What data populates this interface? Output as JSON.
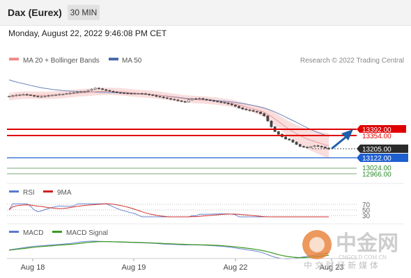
{
  "header": {
    "instrument": "Dax (Eurex)",
    "timeframe": "30 MIN",
    "datetime": "Monday, August 22, 2022 9:46:08 PM CET"
  },
  "legend": {
    "ma20_label": "MA 20 + Bollinger Bands",
    "ma50_label": "MA 50",
    "copyright": "Research © 2022 Trading Central",
    "rsi_label": "RSI",
    "rsi_ma_label": "9MA",
    "macd_label": "MACD",
    "macd_signal_label": "MACD Signal"
  },
  "watermark": {
    "brand_cn": "中金网",
    "domain": "CNGOLD.COM.CN",
    "tagline_cn": "中 文 财 经 新 媒 体"
  },
  "colors": {
    "candle_up": "#444444",
    "candle_down": "#444444",
    "ma20": "#e88a8a",
    "bollinger_fill": "#f8d0d0",
    "ma50": "#5b78b0",
    "resistance": "#e00000",
    "pivot": "#333333",
    "support1": "#1e5fd0",
    "support2": "#2e8a2e",
    "arrow": "#1e5fa8",
    "rsi": "#5b78d0",
    "rsi_ma": "#d02020",
    "macd": "#5b78d0",
    "macd_signal": "#3a9a20"
  },
  "chart_data": {
    "type": "line",
    "title": "",
    "x_ticks": [
      "Aug 18",
      "Aug 19",
      "Aug 22",
      "Aug 23"
    ],
    "price_levels": [
      {
        "value": 13392.0,
        "label": "13392.00",
        "kind": "resistance"
      },
      {
        "value": 13354.0,
        "label": "13354.00",
        "kind": "resistance"
      },
      {
        "value": 13205.0,
        "label": "13205.00",
        "kind": "pivot"
      },
      {
        "value": 13122.0,
        "label": "13122.00",
        "kind": "support"
      },
      {
        "value": 13024.0,
        "label": "13024.00",
        "kind": "support"
      },
      {
        "value": 12966.0,
        "label": "12966.00",
        "kind": "support"
      }
    ],
    "price_series": {
      "name": "Price",
      "close": [
        13705,
        13710,
        13715,
        13720,
        13722,
        13718,
        13712,
        13705,
        13700,
        13702,
        13706,
        13710,
        13715,
        13718,
        13722,
        13726,
        13730,
        13735,
        13740,
        13744,
        13748,
        13752,
        13760,
        13772,
        13782,
        13776,
        13768,
        13760,
        13752,
        13746,
        13740,
        13736,
        13734,
        13732,
        13730,
        13730,
        13731,
        13729,
        13725,
        13718,
        13712,
        13704,
        13698,
        13690,
        13684,
        13676,
        13670,
        13662,
        13655,
        13650,
        13670,
        13682,
        13678,
        13684,
        13676,
        13670,
        13664,
        13658,
        13652,
        13646,
        13640,
        13632,
        13622,
        13610,
        13595,
        13584,
        13576,
        13570,
        13562,
        13555,
        13540,
        13520,
        13470,
        13415,
        13370,
        13345,
        13320,
        13300,
        13290,
        13270,
        13248,
        13230,
        13222,
        13218,
        13228,
        13236,
        13232,
        13224,
        13214,
        13205
      ],
      "ma20": [
        13700,
        13705,
        13710,
        13713,
        13715,
        13716,
        13716,
        13715,
        13714,
        13713,
        13713,
        13714,
        13715,
        13717,
        13719,
        13722,
        13725,
        13728,
        13731,
        13735,
        13738,
        13740,
        13742,
        13745,
        13748,
        13750,
        13751,
        13752,
        13752,
        13751,
        13749,
        13747,
        13744,
        13741,
        13738,
        13735,
        13732,
        13729,
        13727,
        13724,
        13721,
        13717,
        13713,
        13709,
        13704,
        13699,
        13694,
        13690,
        13685,
        13680,
        13678,
        13676,
        13673,
        13671,
        13669,
        13667,
        13664,
        13661,
        13657,
        13653,
        13648,
        13643,
        13637,
        13630,
        13622,
        13613,
        13603,
        13594,
        13585,
        13576,
        13566,
        13553,
        13535,
        13514,
        13490,
        13465,
        13440,
        13415,
        13392,
        13370,
        13350,
        13332,
        13315,
        13300,
        13288,
        13277,
        13266,
        13255,
        13245,
        13236
      ],
      "ma50": [
        13860,
        13850,
        13840,
        13832,
        13824,
        13816,
        13808,
        13800,
        13793,
        13786,
        13780,
        13775,
        13770,
        13766,
        13762,
        13759,
        13756,
        13754,
        13752,
        13750,
        13748,
        13747,
        13746,
        13745,
        13744,
        13743,
        13742,
        13741,
        13740,
        13739,
        13738,
        13737,
        13736,
        13735,
        13733,
        13731,
        13729,
        13727,
        13725,
        13722,
        13719,
        13716,
        13713,
        13710,
        13706,
        13702,
        13698,
        13694,
        13690,
        13686,
        13683,
        13680,
        13678,
        13676,
        13674,
        13672,
        13670,
        13667,
        13664,
        13661,
        13658,
        13654,
        13650,
        13646,
        13641,
        13636,
        13630,
        13624,
        13617,
        13610,
        13602,
        13593,
        13582,
        13570,
        13556,
        13541,
        13525,
        13508,
        13491,
        13474,
        13457,
        13440,
        13423,
        13406,
        13390,
        13375,
        13361,
        13348,
        13336,
        13325
      ]
    },
    "rsi": {
      "levels": [
        70,
        50,
        30
      ],
      "ylim": [
        0,
        100
      ]
    },
    "macd": {
      "macd": [
        -8,
        -4,
        0,
        4,
        8,
        12,
        15,
        18,
        20,
        22,
        24,
        26,
        28,
        30,
        32,
        34,
        36,
        38,
        42,
        46,
        50,
        52,
        54,
        55,
        55,
        54,
        53,
        52,
        51,
        50,
        49,
        48,
        47,
        46,
        46,
        45,
        44,
        43,
        42,
        41,
        40,
        38,
        36,
        34,
        33,
        32,
        31,
        30,
        29,
        28,
        28,
        28,
        28,
        27,
        26,
        25,
        24,
        22,
        20,
        18,
        16,
        13,
        10,
        6,
        2,
        -2,
        -6,
        -10,
        -14,
        -18,
        -24,
        -32,
        -42,
        -52,
        -60,
        -66,
        -70,
        -72,
        -72,
        -70,
        -66,
        -62,
        -58,
        -54,
        -50,
        -46,
        -42,
        -38,
        -34,
        -30
      ],
      "signal": [
        -10,
        -7,
        -4,
        -1,
        2,
        5,
        8,
        11,
        14,
        16,
        18,
        20,
        22,
        24,
        26,
        28,
        30,
        32,
        34,
        37,
        40,
        43,
        46,
        48,
        50,
        51,
        52,
        52,
        52,
        51,
        50,
        50,
        49,
        48,
        47,
        47,
        46,
        45,
        44,
        43,
        42,
        41,
        40,
        38,
        37,
        36,
        35,
        34,
        33,
        32,
        31,
        30,
        30,
        29,
        28,
        28,
        27,
        26,
        25,
        23,
        21,
        19,
        17,
        14,
        11,
        8,
        5,
        2,
        -2,
        -6,
        -10,
        -15,
        -21,
        -28,
        -35,
        -42,
        -48,
        -53,
        -57,
        -60,
        -62,
        -63,
        -63,
        -62,
        -60,
        -58,
        -55,
        -52,
        -49,
        -46
      ]
    }
  }
}
